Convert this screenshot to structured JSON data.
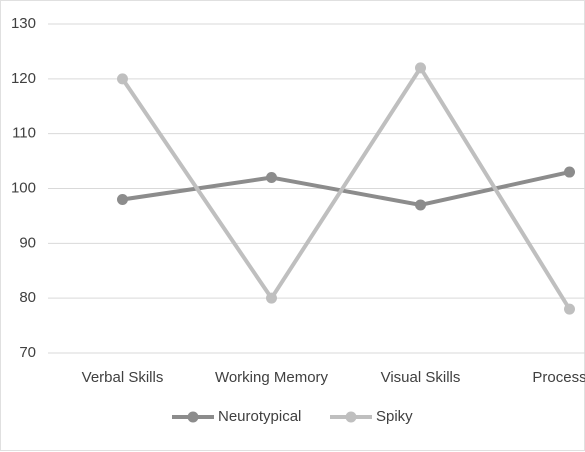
{
  "chart_data": {
    "type": "line",
    "categories": [
      "Verbal Skills",
      "Working Memory",
      "Visual Skills",
      "Processing"
    ],
    "series": [
      {
        "name": "Neurotypical",
        "color": "#8c8c8c",
        "values": [
          98,
          102,
          97,
          103
        ]
      },
      {
        "name": "Spiky",
        "color": "#bfbfbf",
        "values": [
          120,
          80,
          122,
          78
        ]
      }
    ],
    "ylim": [
      70,
      130
    ],
    "yticks": [
      70,
      80,
      90,
      100,
      110,
      120,
      130
    ],
    "grid": true,
    "legend": "bottom"
  }
}
